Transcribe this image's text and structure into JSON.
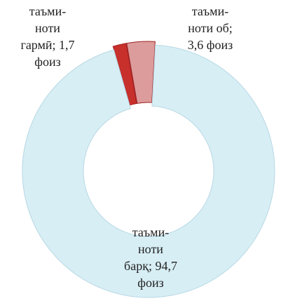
{
  "chart_data": {
    "type": "donut",
    "values": [
      1.7,
      3.6,
      94.7
    ],
    "value_labels": [
      "таъми-\nноти\nгармӣ; 1,7\nфоиз",
      "таъми-\nноти об;\n3,6  фоиз",
      "таъми-\nноти\nбарқ; 94,7\nфоиз"
    ],
    "colors": [
      "#c8302c",
      "#dc9c9c",
      "#d7eef5"
    ]
  }
}
